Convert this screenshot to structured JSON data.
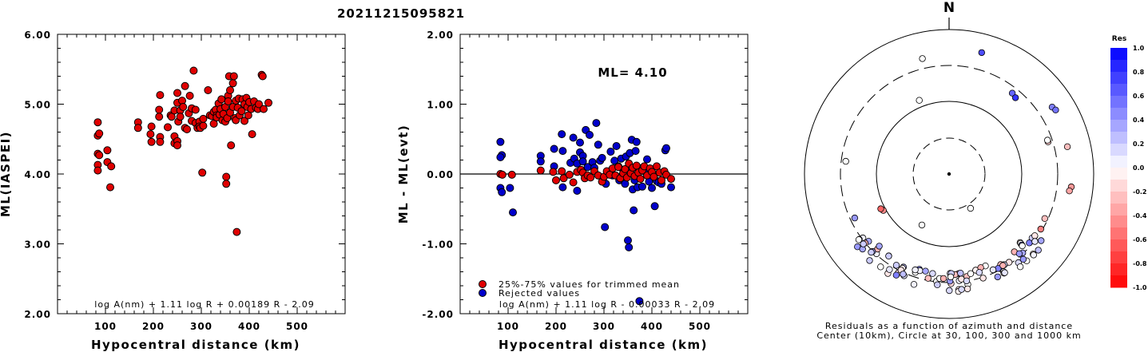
{
  "page_title": "20211215095821",
  "chart_data": [
    {
      "type": "scatter",
      "xlabel": "Hypocentral distance (km)",
      "ylabel": "ML(IASPEI)",
      "xlim": [
        0,
        600
      ],
      "ylim": [
        2.0,
        6.0
      ],
      "x_ticks": [
        "100",
        "200",
        "300",
        "400",
        "500"
      ],
      "y_ticks": [
        "2.00",
        "3.00",
        "4.00",
        "5.00",
        "6.00"
      ],
      "formula": "log A(nm) + 1.11 log R + 0.00189 R - 2.09",
      "marker_color": "#e00000",
      "points": [
        [
          84,
          4.74
        ],
        [
          84,
          4.55
        ],
        [
          87,
          4.58
        ],
        [
          84,
          4.29
        ],
        [
          87,
          4.27
        ],
        [
          84,
          4.13
        ],
        [
          84,
          4.05
        ],
        [
          104,
          4.34
        ],
        [
          104,
          4.17
        ],
        [
          112,
          4.11
        ],
        [
          110,
          3.81
        ],
        [
          168,
          4.74
        ],
        [
          168,
          4.66
        ],
        [
          194,
          4.57
        ],
        [
          196,
          4.46
        ],
        [
          196,
          4.68
        ],
        [
          212,
          4.92
        ],
        [
          212,
          4.82
        ],
        [
          214,
          4.53
        ],
        [
          214,
          4.46
        ],
        [
          214,
          5.13
        ],
        [
          230,
          4.67
        ],
        [
          236,
          4.84
        ],
        [
          238,
          4.82
        ],
        [
          244,
          4.91
        ],
        [
          244,
          4.54
        ],
        [
          244,
          4.44
        ],
        [
          250,
          4.47
        ],
        [
          250,
          4.41
        ],
        [
          250,
          5.16
        ],
        [
          250,
          5.02
        ],
        [
          252,
          4.75
        ],
        [
          256,
          4.91
        ],
        [
          256,
          4.82
        ],
        [
          260,
          5.05
        ],
        [
          262,
          4.96
        ],
        [
          266,
          4.66
        ],
        [
          266,
          5.26
        ],
        [
          270,
          4.64
        ],
        [
          274,
          4.87
        ],
        [
          276,
          5.12
        ],
        [
          280,
          4.94
        ],
        [
          280,
          4.76
        ],
        [
          284,
          5.48
        ],
        [
          288,
          4.92
        ],
        [
          288,
          4.73
        ],
        [
          292,
          4.66
        ],
        [
          296,
          4.75
        ],
        [
          296,
          4.68
        ],
        [
          298,
          4.66
        ],
        [
          304,
          4.69
        ],
        [
          304,
          4.79
        ],
        [
          302,
          4.02
        ],
        [
          314,
          5.2
        ],
        [
          318,
          4.84
        ],
        [
          322,
          4.83
        ],
        [
          326,
          4.89
        ],
        [
          326,
          4.72
        ],
        [
          330,
          4.92
        ],
        [
          332,
          4.84
        ],
        [
          332,
          4.81
        ],
        [
          336,
          5.01
        ],
        [
          338,
          4.85
        ],
        [
          340,
          4.93
        ],
        [
          342,
          5.07
        ],
        [
          344,
          4.77
        ],
        [
          346,
          4.86
        ],
        [
          350,
          4.96
        ],
        [
          350,
          4.75
        ],
        [
          352,
          3.96
        ],
        [
          352,
          3.86
        ],
        [
          354,
          4.8
        ],
        [
          356,
          5.12
        ],
        [
          356,
          5.04
        ],
        [
          358,
          5.4
        ],
        [
          360,
          5.2
        ],
        [
          360,
          4.88
        ],
        [
          362,
          4.41
        ],
        [
          366,
          5.3
        ],
        [
          366,
          4.96
        ],
        [
          368,
          5.4
        ],
        [
          370,
          4.8
        ],
        [
          372,
          5.05
        ],
        [
          372,
          4.77
        ],
        [
          374,
          3.17
        ],
        [
          376,
          4.95
        ],
        [
          378,
          5.08
        ],
        [
          380,
          4.84
        ],
        [
          384,
          4.9
        ],
        [
          386,
          5.07
        ],
        [
          390,
          5.0
        ],
        [
          390,
          4.76
        ],
        [
          394,
          5.09
        ],
        [
          396,
          4.96
        ],
        [
          398,
          4.84
        ],
        [
          400,
          5.03
        ],
        [
          404,
          4.93
        ],
        [
          406,
          4.57
        ],
        [
          410,
          5.04
        ],
        [
          414,
          4.95
        ],
        [
          418,
          4.93
        ],
        [
          420,
          5.0
        ],
        [
          426,
          5.42
        ],
        [
          428,
          5.4
        ],
        [
          430,
          4.93
        ],
        [
          440,
          5.02
        ]
      ]
    },
    {
      "type": "scatter",
      "xlabel": "Hypocentral distance (km)",
      "ylabel": "ML - ML(evt)",
      "xlim": [
        0,
        600
      ],
      "ylim": [
        -2.0,
        2.0
      ],
      "x_ticks": [
        "100",
        "200",
        "300",
        "400",
        "500"
      ],
      "y_ticks": [
        "-2.00",
        "-1.00",
        "0.00",
        "1.00",
        "2.00"
      ],
      "ml_label": "ML= 4.10",
      "formula": "log A(nm) + 1.11 log R - 0.00033 R - 2.09",
      "series": [
        {
          "name": "25%-75% values for trimmed mean",
          "color": "#e00000",
          "points": [
            [
              84,
              0.0
            ],
            [
              88,
              -0.01
            ],
            [
              108,
              -0.01
            ],
            [
              168,
              0.05
            ],
            [
              194,
              0.03
            ],
            [
              200,
              -0.09
            ],
            [
              212,
              0.04
            ],
            [
              216,
              -0.06
            ],
            [
              228,
              -0.01
            ],
            [
              236,
              -0.12
            ],
            [
              244,
              0.03
            ],
            [
              252,
              0.06
            ],
            [
              256,
              0.02
            ],
            [
              260,
              -0.06
            ],
            [
              266,
              -0.02
            ],
            [
              272,
              -0.05
            ],
            [
              280,
              0.04
            ],
            [
              288,
              -0.02
            ],
            [
              296,
              -0.11
            ],
            [
              300,
              -0.04
            ],
            [
              306,
              0.04
            ],
            [
              312,
              -0.01
            ],
            [
              318,
              0.08
            ],
            [
              324,
              -0.02
            ],
            [
              330,
              0.1
            ],
            [
              334,
              -0.06
            ],
            [
              340,
              0.01
            ],
            [
              344,
              0.07
            ],
            [
              348,
              -0.05
            ],
            [
              352,
              0.15
            ],
            [
              356,
              0.01
            ],
            [
              360,
              0.09
            ],
            [
              364,
              -0.03
            ],
            [
              368,
              0.12
            ],
            [
              372,
              0.02
            ],
            [
              376,
              -0.07
            ],
            [
              380,
              0.05
            ],
            [
              384,
              0.11
            ],
            [
              390,
              -0.02
            ],
            [
              396,
              0.08
            ],
            [
              400,
              0.03
            ],
            [
              404,
              -0.04
            ],
            [
              410,
              0.11
            ],
            [
              416,
              0.02
            ],
            [
              420,
              -0.09
            ],
            [
              426,
              0.04
            ],
            [
              430,
              -0.01
            ],
            [
              440,
              -0.07
            ]
          ]
        },
        {
          "name": "Rejected values",
          "color": "#0000cc",
          "points": [
            [
              84,
              0.46
            ],
            [
              87,
              0.27
            ],
            [
              84,
              0.24
            ],
            [
              84,
              -0.2
            ],
            [
              87,
              -0.26
            ],
            [
              104,
              -0.2
            ],
            [
              110,
              -0.55
            ],
            [
              168,
              0.26
            ],
            [
              168,
              0.18
            ],
            [
              196,
              0.36
            ],
            [
              196,
              0.11
            ],
            [
              212,
              0.57
            ],
            [
              214,
              0.33
            ],
            [
              214,
              -0.19
            ],
            [
              230,
              0.16
            ],
            [
              236,
              0.52
            ],
            [
              238,
              0.22
            ],
            [
              244,
              0.15
            ],
            [
              244,
              -0.24
            ],
            [
              250,
              0.45
            ],
            [
              250,
              0.31
            ],
            [
              256,
              0.26
            ],
            [
              256,
              0.18
            ],
            [
              262,
              0.63
            ],
            [
              266,
              0.1
            ],
            [
              270,
              0.56
            ],
            [
              276,
              0.17
            ],
            [
              280,
              0.09
            ],
            [
              284,
              0.73
            ],
            [
              288,
              0.42
            ],
            [
              292,
              0.19
            ],
            [
              296,
              0.23
            ],
            [
              298,
              -0.09
            ],
            [
              302,
              -0.76
            ],
            [
              304,
              -0.14
            ],
            [
              314,
              0.32
            ],
            [
              318,
              -0.02
            ],
            [
              322,
              0.19
            ],
            [
              326,
              0.4
            ],
            [
              330,
              0.11
            ],
            [
              332,
              -0.09
            ],
            [
              336,
              0.22
            ],
            [
              338,
              -0.02
            ],
            [
              340,
              0.06
            ],
            [
              342,
              -0.1
            ],
            [
              344,
              -0.14
            ],
            [
              346,
              0.25
            ],
            [
              350,
              -0.95
            ],
            [
              352,
              -1.05
            ],
            [
              354,
              0.3
            ],
            [
              356,
              0.06
            ],
            [
              358,
              0.49
            ],
            [
              360,
              -0.22
            ],
            [
              362,
              -0.52
            ],
            [
              364,
              -0.09
            ],
            [
              366,
              0.33
            ],
            [
              368,
              0.46
            ],
            [
              370,
              -0.19
            ],
            [
              374,
              -1.82
            ],
            [
              376,
              0.08
            ],
            [
              380,
              -0.18
            ],
            [
              386,
              0.03
            ],
            [
              390,
              0.21
            ],
            [
              394,
              -0.11
            ],
            [
              400,
              -0.2
            ],
            [
              406,
              -0.46
            ],
            [
              410,
              -0.1
            ],
            [
              414,
              -0.12
            ],
            [
              420,
              -0.14
            ],
            [
              428,
              0.34
            ],
            [
              430,
              0.37
            ],
            [
              440,
              -0.19
            ]
          ]
        }
      ]
    },
    {
      "type": "polar",
      "north_label": "N",
      "caption_line1": "Residuals as a function of azimuth and distance",
      "caption_line2": "Center (10km), Circle at 30, 100, 300 and 1000 km",
      "colorbar_title": "Res",
      "colorbar_ticks": [
        "1.0",
        "0.8",
        "0.6",
        "0.4",
        "0.2",
        "0.0",
        "-0.2",
        "-0.4",
        "-0.6",
        "-0.8",
        "-1.0"
      ],
      "rings_km": [
        30,
        100,
        300,
        1000
      ],
      "stations": [
        {
          "az": -13,
          "r": 0.82,
          "res": 0.0
        },
        {
          "az": 15,
          "r": 0.87,
          "res": 0.7
        },
        {
          "az": 38,
          "r": 0.71,
          "res": 0.6
        },
        {
          "az": 41,
          "r": 0.7,
          "res": 0.8
        },
        {
          "az": 57,
          "r": 0.85,
          "res": 0.5
        },
        {
          "az": 59,
          "r": 0.86,
          "res": 0.55
        },
        {
          "az": 72,
          "r": 0.72,
          "res": -0.2
        },
        {
          "az": 71,
          "r": 0.72,
          "res": 0.0
        },
        {
          "az": 77,
          "r": 0.84,
          "res": -0.25
        },
        {
          "az": 96,
          "r": 0.85,
          "res": -0.4
        },
        {
          "az": 98,
          "r": 0.84,
          "res": -0.35
        },
        {
          "az": 115,
          "r": 0.73,
          "res": -0.25
        },
        {
          "az": 121,
          "r": 0.74,
          "res": -0.5
        },
        {
          "az": 148,
          "r": 0.28,
          "res": 0.0
        },
        {
          "az": 208,
          "r": 0.4,
          "res": 0.0
        },
        {
          "az": 241,
          "r": 0.52,
          "res": -0.45
        },
        {
          "az": 243,
          "r": 0.53,
          "res": -0.6
        },
        {
          "az": 245,
          "r": 0.72,
          "res": 0.4
        },
        {
          "az": 277,
          "r": 0.72,
          "res": 0.0
        },
        {
          "az": -22,
          "r": 0.55,
          "res": 0.0
        }
      ],
      "cluster_count": 95
    }
  ]
}
